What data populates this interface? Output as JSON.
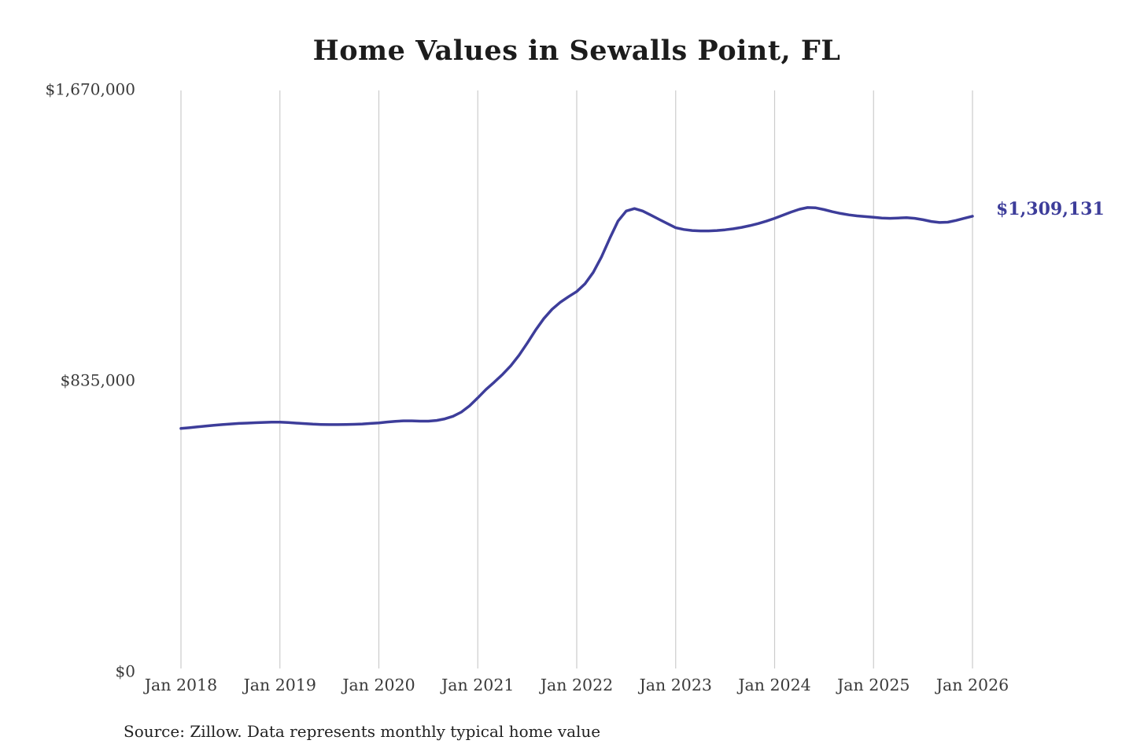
{
  "chart_data": {
    "type": "line",
    "title": "Home Values in Sewalls Point, FL",
    "source": "Source: Zillow. Data represents monthly typical home value",
    "line_color": "#3d3d9a",
    "grid_color": "#cccccc",
    "end_label": "$1,309,131",
    "end_value": 1309131,
    "ylim": [
      0,
      1670000
    ],
    "legend": "none",
    "grid": "vertical-only",
    "y_ticks": [
      {
        "value": 0,
        "label": "$0"
      },
      {
        "value": 835000,
        "label": "$835,000"
      },
      {
        "value": 1670000,
        "label": "$1,670,000"
      }
    ],
    "x_ticks": [
      {
        "t": 2018,
        "label": "Jan 2018"
      },
      {
        "t": 2019,
        "label": "Jan 2019"
      },
      {
        "t": 2020,
        "label": "Jan 2020"
      },
      {
        "t": 2021,
        "label": "Jan 2021"
      },
      {
        "t": 2022,
        "label": "Jan 2022"
      },
      {
        "t": 2023,
        "label": "Jan 2023"
      },
      {
        "t": 2024,
        "label": "Jan 2024"
      },
      {
        "t": 2025,
        "label": "Jan 2025"
      },
      {
        "t": 2026,
        "label": "Jan 2026"
      }
    ],
    "series": [
      {
        "name": "Typical home value",
        "start": "2018-01",
        "interval": "month",
        "values": [
          700000,
          702000,
          704500,
          707000,
          709000,
          711000,
          713000,
          714500,
          715500,
          716500,
          717500,
          718000,
          718000,
          717000,
          715500,
          714000,
          712500,
          711500,
          711000,
          711000,
          711500,
          712000,
          713000,
          714500,
          716000,
          718500,
          720500,
          722000,
          722000,
          721000,
          721000,
          723000,
          727500,
          735000,
          747000,
          765000,
          788000,
          812000,
          833000,
          855000,
          880000,
          910000,
          945000,
          982000,
          1015000,
          1042000,
          1062000,
          1078000,
          1093000,
          1115000,
          1148000,
          1192000,
          1245000,
          1295000,
          1324000,
          1331000,
          1324000,
          1312000,
          1300000,
          1288000,
          1276000,
          1271000,
          1268000,
          1267000,
          1267000,
          1268000,
          1270000,
          1273000,
          1277000,
          1282000,
          1288000,
          1295000,
          1303000,
          1312000,
          1321000,
          1329000,
          1334000,
          1333000,
          1328000,
          1322000,
          1317000,
          1313000,
          1310000,
          1308000,
          1306000,
          1304000,
          1303000,
          1304000,
          1305000,
          1303000,
          1299000,
          1294000,
          1291000,
          1292000,
          1297000,
          1303000,
          1309131
        ]
      }
    ]
  }
}
